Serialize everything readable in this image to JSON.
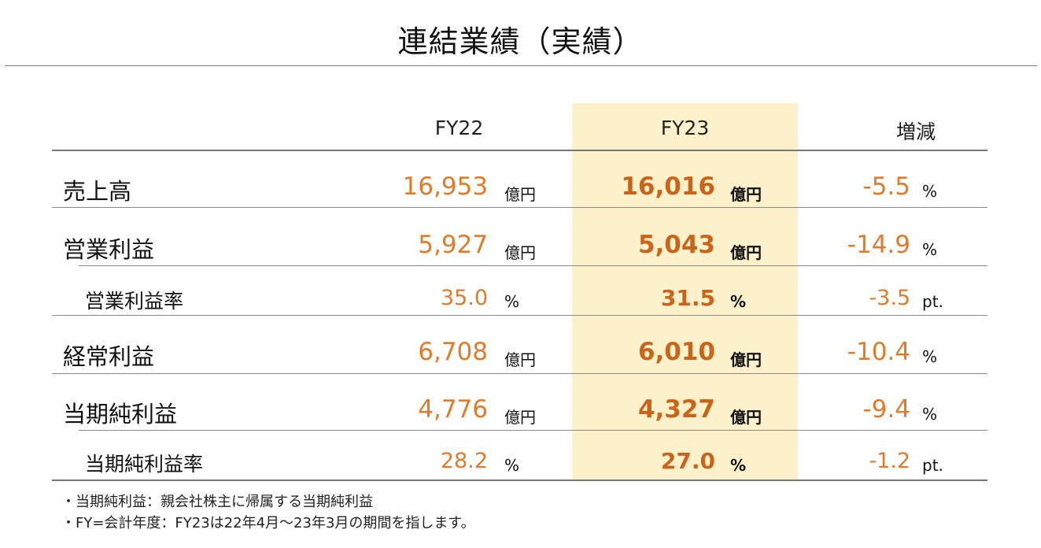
{
  "title": "連結業績（実績）",
  "columns": {
    "fy22": "FY22",
    "fy23": "FY23",
    "change": "増減"
  },
  "rows": [
    {
      "label": "売上高",
      "fy22": "16,953",
      "fy22_unit": "億円",
      "fy23": "16,016",
      "fy23_unit": "億円",
      "change": "-5.5",
      "change_unit": "%"
    },
    {
      "label": "営業利益",
      "fy22": "5,927",
      "fy22_unit": "億円",
      "fy23": "5,043",
      "fy23_unit": "億円",
      "change": "-14.9",
      "change_unit": "%"
    },
    {
      "label": "営業利益率",
      "fy22": "35.0",
      "fy22_unit": "%",
      "fy23": "31.5",
      "fy23_unit": "%",
      "change": "-3.5",
      "change_unit": "pt."
    },
    {
      "label": "経常利益",
      "fy22": "6,708",
      "fy22_unit": "億円",
      "fy23": "6,010",
      "fy23_unit": "億円",
      "change": "-10.4",
      "change_unit": "%"
    },
    {
      "label": "当期純利益",
      "fy22": "4,776",
      "fy22_unit": "億円",
      "fy23": "4,327",
      "fy23_unit": "億円",
      "change": "-9.4",
      "change_unit": "%"
    },
    {
      "label": "当期純利益率",
      "fy22": "28.2",
      "fy22_unit": "%",
      "fy23": "27.0",
      "fy23_unit": "%",
      "change": "-1.2",
      "change_unit": "pt."
    }
  ],
  "notes": [
    "・当期純利益：親会社株主に帰属する当期純利益",
    "・FY=会計年度：FY23は22年4月～23年3月の期間を指します。"
  ],
  "colors": {
    "accent": "#e07b2a",
    "accent_bold": "#c8651a",
    "highlight": "#fdf1cc"
  }
}
